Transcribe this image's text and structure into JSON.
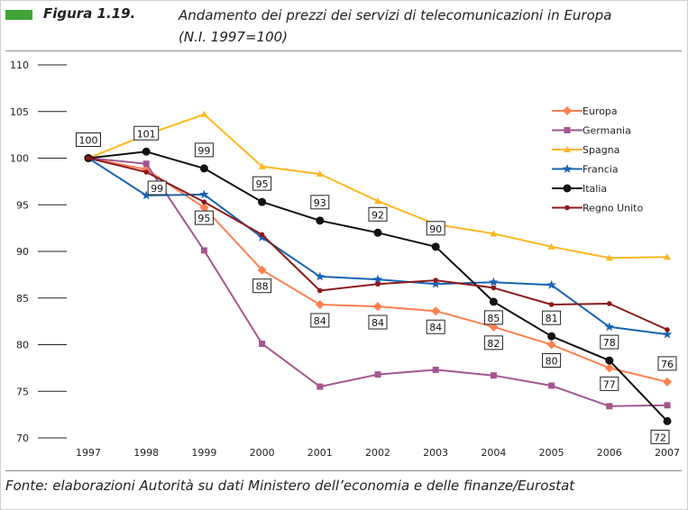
{
  "figure": {
    "label": "Figura 1.19.",
    "title": "Andamento dei prezzi dei servizi di telecomunicazioni in Europa",
    "subtitle": "(N.I. 1997=100)",
    "source": "Fonte: elaborazioni Autorità su dati Ministero dell’economia e delle finanze/Eurostat",
    "accent_color": "#41a636"
  },
  "chart_data": {
    "type": "line",
    "title": "Andamento dei prezzi dei servizi di telecomunicazioni in Europa",
    "subtitle": "(N.I. 1997=100)",
    "xlabel": "",
    "ylabel": "",
    "x": [
      "1997",
      "1998",
      "1999",
      "2000",
      "2001",
      "2002",
      "2003",
      "2004",
      "2005",
      "2006",
      "2007"
    ],
    "ylim": [
      70,
      110
    ],
    "yticks": [
      70,
      75,
      80,
      85,
      90,
      95,
      100,
      105,
      110
    ],
    "grid": "horizontal stubs at y-axis",
    "legend_position": "top-right",
    "series": [
      {
        "name": "Europa",
        "color": "#ff7f50",
        "marker": "diamond",
        "values": [
          100,
          98.8,
          94.7,
          88.0,
          84.3,
          84.1,
          83.6,
          81.9,
          80.0,
          77.5,
          76.0
        ],
        "labels": [
          null,
          null,
          null,
          "88",
          "84",
          "84",
          "84",
          "82",
          "80",
          "77",
          "76"
        ]
      },
      {
        "name": "Germania",
        "color": "#a3568f",
        "marker": "square",
        "values": [
          100,
          99.4,
          90.1,
          80.1,
          75.5,
          76.8,
          77.3,
          76.7,
          75.6,
          73.4,
          73.5
        ],
        "labels": [
          null,
          null,
          null,
          null,
          null,
          null,
          null,
          null,
          null,
          null,
          null
        ]
      },
      {
        "name": "Spagna",
        "color": "#ffb61e",
        "marker": "triangle",
        "values": [
          100,
          102.5,
          104.7,
          99.1,
          98.3,
          95.4,
          92.9,
          91.9,
          90.5,
          89.3,
          89.4
        ],
        "labels": [
          null,
          null,
          null,
          null,
          null,
          null,
          null,
          null,
          null,
          null,
          null
        ]
      },
      {
        "name": "Francia",
        "color": "#1864b4",
        "marker": "star",
        "values": [
          100,
          96.0,
          96.1,
          91.5,
          87.3,
          87.0,
          86.5,
          86.7,
          86.4,
          81.9,
          81.1
        ],
        "labels": [
          null,
          null,
          null,
          null,
          null,
          null,
          null,
          null,
          null,
          null,
          null
        ]
      },
      {
        "name": "Italia",
        "color": "#111111",
        "marker": "circle",
        "values": [
          100,
          100.7,
          98.9,
          95.3,
          93.3,
          92.0,
          90.5,
          84.6,
          80.9,
          78.3,
          71.8
        ],
        "labels": [
          "100",
          "101",
          "99",
          "95",
          "93",
          "92",
          "90",
          "85",
          "81",
          "78",
          "72"
        ]
      },
      {
        "name": "Regno Unito",
        "color": "#8b1a1a",
        "marker": "dot",
        "values": [
          100,
          98.5,
          95.3,
          91.8,
          85.8,
          86.5,
          86.9,
          86.1,
          84.3,
          84.4,
          81.6
        ],
        "labels": [
          null,
          "99",
          "95",
          null,
          null,
          null,
          null,
          null,
          null,
          null,
          null
        ]
      }
    ]
  }
}
